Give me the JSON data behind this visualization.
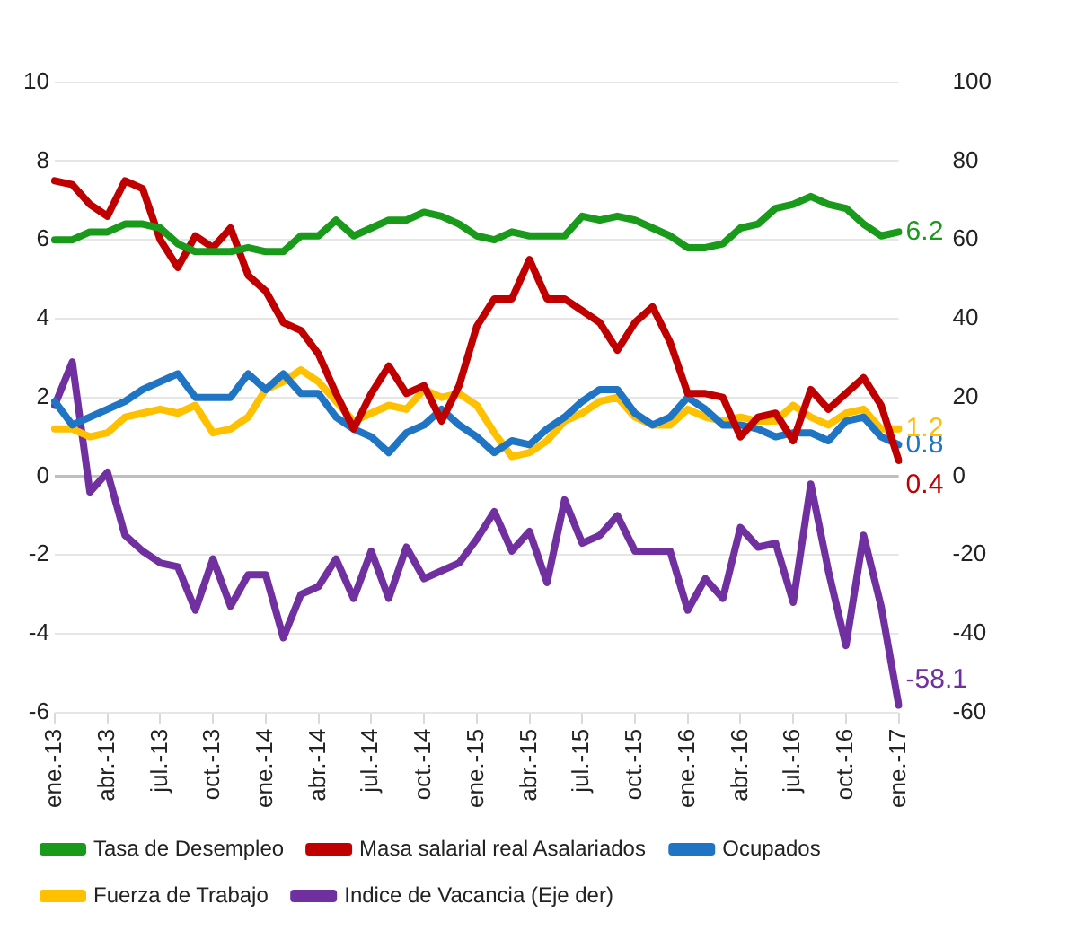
{
  "chart_data": {
    "type": "line",
    "categories": [
      "ene.-13",
      null,
      null,
      "abr.-13",
      null,
      null,
      "jul.-13",
      null,
      null,
      "oct.-13",
      null,
      null,
      "ene.-14",
      null,
      null,
      "abr.-14",
      null,
      null,
      "jul.-14",
      null,
      null,
      "oct.-14",
      null,
      null,
      "ene.-15",
      null,
      null,
      "abr.-15",
      null,
      null,
      "jul.-15",
      null,
      null,
      "oct.-15",
      null,
      null,
      "ene.-16",
      null,
      null,
      "abr.-16",
      null,
      null,
      "jul.-16",
      null,
      null,
      "oct.-16",
      null,
      null,
      "ene.-17"
    ],
    "series": [
      {
        "name": "Tasa de Desempleo",
        "color": "#1a9a1a",
        "values": [
          6.0,
          6.0,
          6.2,
          6.2,
          6.4,
          6.4,
          6.3,
          5.9,
          5.7,
          5.7,
          5.7,
          5.8,
          5.7,
          5.7,
          6.1,
          6.1,
          6.5,
          6.1,
          6.3,
          6.5,
          6.5,
          6.7,
          6.6,
          6.4,
          6.1,
          6.0,
          6.2,
          6.1,
          6.1,
          6.1,
          6.6,
          6.5,
          6.6,
          6.5,
          6.3,
          6.1,
          5.8,
          5.8,
          5.9,
          6.3,
          6.4,
          6.8,
          6.9,
          7.1,
          6.9,
          6.8,
          6.4,
          6.1,
          6.2
        ],
        "value_labels": [
          null,
          null,
          null,
          null,
          null,
          null,
          null,
          null,
          null,
          null,
          null,
          null,
          null,
          null,
          null,
          null,
          null,
          null,
          null,
          null,
          null,
          null,
          null,
          null,
          null,
          null,
          null,
          null,
          null,
          null,
          null,
          null,
          null,
          null,
          null,
          null,
          null,
          null,
          null,
          null,
          null,
          null,
          null,
          null,
          null,
          null,
          null,
          null,
          "6.2"
        ]
      },
      {
        "name": "Masa salarial real Asalariados",
        "color": "#c00000",
        "values": [
          7.5,
          7.4,
          6.9,
          6.6,
          7.5,
          7.3,
          6.0,
          5.3,
          6.1,
          5.8,
          6.3,
          5.1,
          4.7,
          3.9,
          3.7,
          3.1,
          2.1,
          1.2,
          2.1,
          2.8,
          2.1,
          2.3,
          1.4,
          2.3,
          3.8,
          4.5,
          4.5,
          5.5,
          4.5,
          4.5,
          4.2,
          3.9,
          3.2,
          3.9,
          4.3,
          3.4,
          2.1,
          2.1,
          2.0,
          1.0,
          1.5,
          1.6,
          0.9,
          2.2,
          1.7,
          2.1,
          2.5,
          1.8,
          0.4
        ],
        "value_labels": [
          null,
          null,
          null,
          null,
          null,
          null,
          null,
          null,
          null,
          null,
          null,
          null,
          null,
          null,
          null,
          null,
          null,
          null,
          null,
          null,
          null,
          null,
          null,
          null,
          null,
          null,
          null,
          null,
          null,
          null,
          null,
          null,
          null,
          null,
          null,
          null,
          null,
          null,
          null,
          null,
          null,
          null,
          null,
          null,
          null,
          null,
          null,
          null,
          "0.4"
        ]
      },
      {
        "name": "Ocupados",
        "color": "#1f74c4",
        "values": [
          1.9,
          1.3,
          1.5,
          1.7,
          1.9,
          2.2,
          2.4,
          2.6,
          2.0,
          2.0,
          2.0,
          2.6,
          2.2,
          2.6,
          2.1,
          2.1,
          1.5,
          1.2,
          1.0,
          0.6,
          1.1,
          1.3,
          1.7,
          1.3,
          1.0,
          0.6,
          0.9,
          0.8,
          1.2,
          1.5,
          1.9,
          2.2,
          2.2,
          1.6,
          1.3,
          1.5,
          2.0,
          1.7,
          1.3,
          1.3,
          1.2,
          1.0,
          1.1,
          1.1,
          0.9,
          1.4,
          1.5,
          1.0,
          0.8
        ],
        "value_labels": [
          null,
          null,
          null,
          null,
          null,
          null,
          null,
          null,
          null,
          null,
          null,
          null,
          null,
          null,
          null,
          null,
          null,
          null,
          null,
          null,
          null,
          null,
          null,
          null,
          null,
          null,
          null,
          null,
          null,
          null,
          null,
          null,
          null,
          null,
          null,
          null,
          null,
          null,
          null,
          null,
          null,
          null,
          null,
          null,
          null,
          null,
          null,
          null,
          "0.8"
        ]
      },
      {
        "name": "Fuerza de Trabajo",
        "color": "#ffc000",
        "values": [
          1.2,
          1.2,
          1.0,
          1.1,
          1.5,
          1.6,
          1.7,
          1.6,
          1.8,
          1.1,
          1.2,
          1.5,
          2.2,
          2.4,
          2.7,
          2.4,
          1.9,
          1.4,
          1.6,
          1.8,
          1.7,
          2.2,
          2.0,
          2.1,
          1.8,
          1.1,
          0.5,
          0.6,
          0.9,
          1.4,
          1.6,
          1.9,
          2.0,
          1.5,
          1.3,
          1.3,
          1.7,
          1.5,
          1.4,
          1.5,
          1.4,
          1.4,
          1.8,
          1.5,
          1.3,
          1.6,
          1.7,
          1.2,
          1.2
        ],
        "value_labels": [
          null,
          null,
          null,
          null,
          null,
          null,
          null,
          null,
          null,
          null,
          null,
          null,
          null,
          null,
          null,
          null,
          null,
          null,
          null,
          null,
          null,
          null,
          null,
          null,
          null,
          null,
          null,
          null,
          null,
          null,
          null,
          null,
          null,
          null,
          null,
          null,
          null,
          null,
          null,
          null,
          null,
          null,
          null,
          null,
          null,
          null,
          null,
          null,
          "1.2"
        ]
      },
      {
        "name": "Indice de Vacancia (Eje der)",
        "color": "#7030a0",
        "axis": "y2",
        "values": [
          18,
          29,
          -4,
          1,
          -15,
          -19,
          -22,
          -23,
          -34,
          -21,
          -33,
          -25,
          -25,
          -41,
          -30,
          -28,
          -21,
          -31,
          -19,
          -31,
          -18,
          -26,
          -24,
          -22,
          -16,
          -9,
          -19,
          -14,
          -27,
          -6,
          -17,
          -15,
          -10,
          -19,
          -19,
          -19,
          -34,
          -26,
          -31,
          -13,
          -18,
          -17,
          -32,
          -2,
          -24,
          -43,
          -15,
          -33,
          -58.1
        ],
        "value_labels": [
          null,
          null,
          null,
          null,
          null,
          null,
          null,
          null,
          null,
          null,
          null,
          null,
          null,
          null,
          null,
          null,
          null,
          null,
          null,
          null,
          null,
          null,
          null,
          null,
          null,
          null,
          null,
          null,
          null,
          null,
          null,
          null,
          null,
          null,
          null,
          null,
          null,
          null,
          null,
          null,
          null,
          null,
          null,
          null,
          null,
          null,
          null,
          null,
          "-58.1"
        ]
      }
    ],
    "ylim": [
      -6,
      10
    ],
    "yticks": [
      -6,
      -4,
      -2,
      0,
      2,
      4,
      6,
      8,
      10
    ],
    "y2lim": [
      -60,
      100
    ],
    "y2ticks": [
      -60,
      -40,
      -20,
      0,
      20,
      40,
      60,
      80,
      100
    ],
    "grid": "y",
    "legend": "bottom",
    "marker": "none",
    "line_style": "solid"
  }
}
